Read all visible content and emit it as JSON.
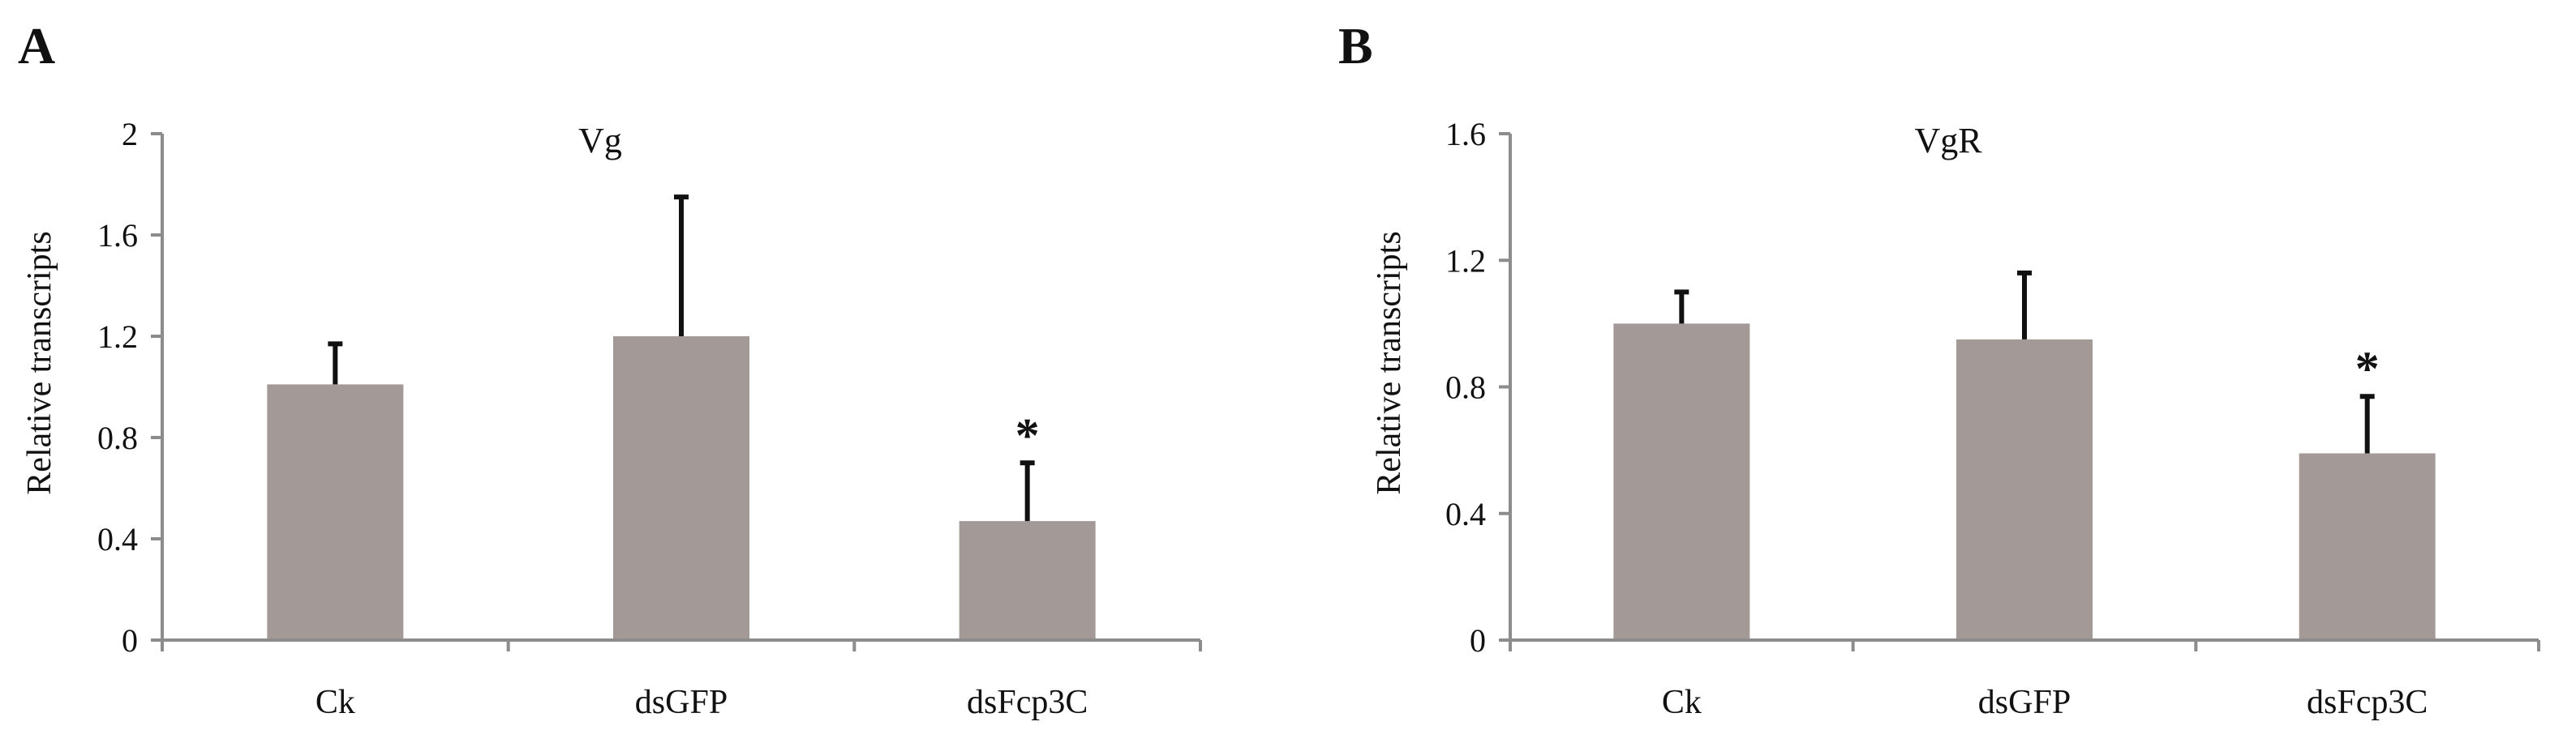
{
  "chart_data": [
    {
      "type": "bar",
      "panel": "A",
      "title": "Vg",
      "ylabel": "Relative transcripts",
      "xlabel": "",
      "categories": [
        "Ck",
        "dsGFP",
        "dsFcp3C"
      ],
      "values": [
        1.01,
        1.2,
        0.47
      ],
      "errors": [
        0.16,
        0.55,
        0.23
      ],
      "significance": [
        "",
        "",
        "*"
      ],
      "ylim": [
        0,
        2
      ],
      "yticks": [
        0,
        0.4,
        0.8,
        1.2,
        1.6,
        2
      ],
      "ytick_labels": [
        "0",
        "0.4",
        "0.8",
        "1.2",
        "1.6",
        "2"
      ],
      "bar_color": "#a39a97",
      "grid": false
    },
    {
      "type": "bar",
      "panel": "B",
      "title": "VgR",
      "ylabel": "Relative transcripts",
      "xlabel": "",
      "categories": [
        "Ck",
        "dsGFP",
        "dsFcp3C"
      ],
      "values": [
        1.0,
        0.95,
        0.59
      ],
      "errors": [
        0.1,
        0.21,
        0.18
      ],
      "significance": [
        "",
        "",
        "*"
      ],
      "ylim": [
        0,
        1.6
      ],
      "yticks": [
        0,
        0.4,
        0.8,
        1.2,
        1.6
      ],
      "ytick_labels": [
        "0",
        "0.4",
        "0.8",
        "1.2",
        "1.6"
      ],
      "bar_color": "#a39a97",
      "grid": false
    }
  ]
}
